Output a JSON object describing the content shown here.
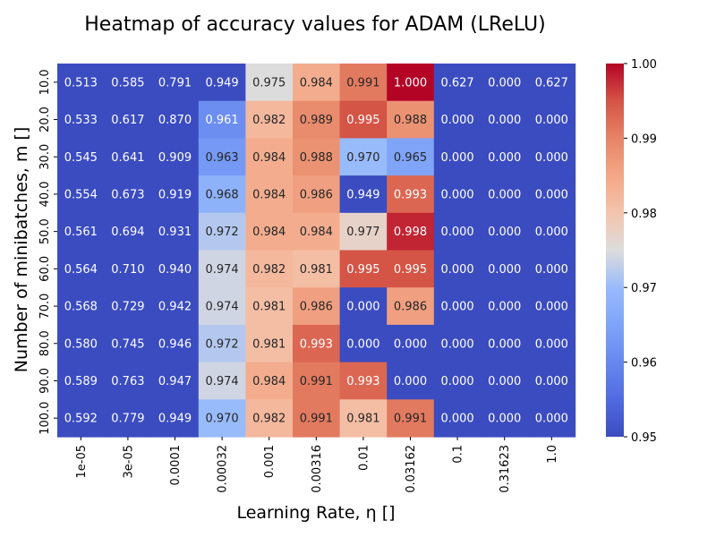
{
  "chart_data": {
    "type": "heatmap",
    "title": "Heatmap of accuracy values for ADAM (LReLU)",
    "xlabel": "Learning Rate, η []",
    "ylabel": "Number of minibatches, m []",
    "x_categories": [
      "1e-05",
      "3e-05",
      "0.0001",
      "0.00032",
      "0.001",
      "0.00316",
      "0.01",
      "0.03162",
      "0.1",
      "0.31623",
      "1.0"
    ],
    "y_categories": [
      "10.0",
      "20.0",
      "30.0",
      "40.0",
      "50.0",
      "60.0",
      "70.0",
      "80.0",
      "90.0",
      "100.0"
    ],
    "values": [
      [
        0.513,
        0.585,
        0.791,
        0.949,
        0.975,
        0.984,
        0.991,
        1.0,
        0.627,
        0.0,
        0.627
      ],
      [
        0.533,
        0.617,
        0.87,
        0.961,
        0.982,
        0.989,
        0.995,
        0.988,
        0.0,
        0.0,
        0.0
      ],
      [
        0.545,
        0.641,
        0.909,
        0.963,
        0.984,
        0.988,
        0.97,
        0.965,
        0.0,
        0.0,
        0.0
      ],
      [
        0.554,
        0.673,
        0.919,
        0.968,
        0.984,
        0.986,
        0.949,
        0.993,
        0.0,
        0.0,
        0.0
      ],
      [
        0.561,
        0.694,
        0.931,
        0.972,
        0.984,
        0.984,
        0.977,
        0.998,
        0.0,
        0.0,
        0.0
      ],
      [
        0.564,
        0.71,
        0.94,
        0.974,
        0.982,
        0.981,
        0.995,
        0.995,
        0.0,
        0.0,
        0.0
      ],
      [
        0.568,
        0.729,
        0.942,
        0.974,
        0.981,
        0.986,
        0.0,
        0.986,
        0.0,
        0.0,
        0.0
      ],
      [
        0.58,
        0.745,
        0.946,
        0.972,
        0.981,
        0.993,
        0.0,
        0.0,
        0.0,
        0.0,
        0.0
      ],
      [
        0.589,
        0.763,
        0.947,
        0.974,
        0.984,
        0.991,
        0.993,
        0.0,
        0.0,
        0.0,
        0.0
      ],
      [
        0.592,
        0.779,
        0.949,
        0.97,
        0.982,
        0.991,
        0.981,
        0.991,
        0.0,
        0.0,
        0.0
      ]
    ],
    "value_format": "%.3f",
    "colormap": "coolwarm",
    "color_range": [
      0.95,
      1.0
    ],
    "colorbar_ticks": [
      "0.95",
      "0.96",
      "0.97",
      "0.98",
      "0.99",
      "1.00"
    ],
    "colorbar_tick_values": [
      0.95,
      0.96,
      0.97,
      0.98,
      0.99,
      1.0
    ],
    "grid": false,
    "colorbar_placement": "right"
  }
}
